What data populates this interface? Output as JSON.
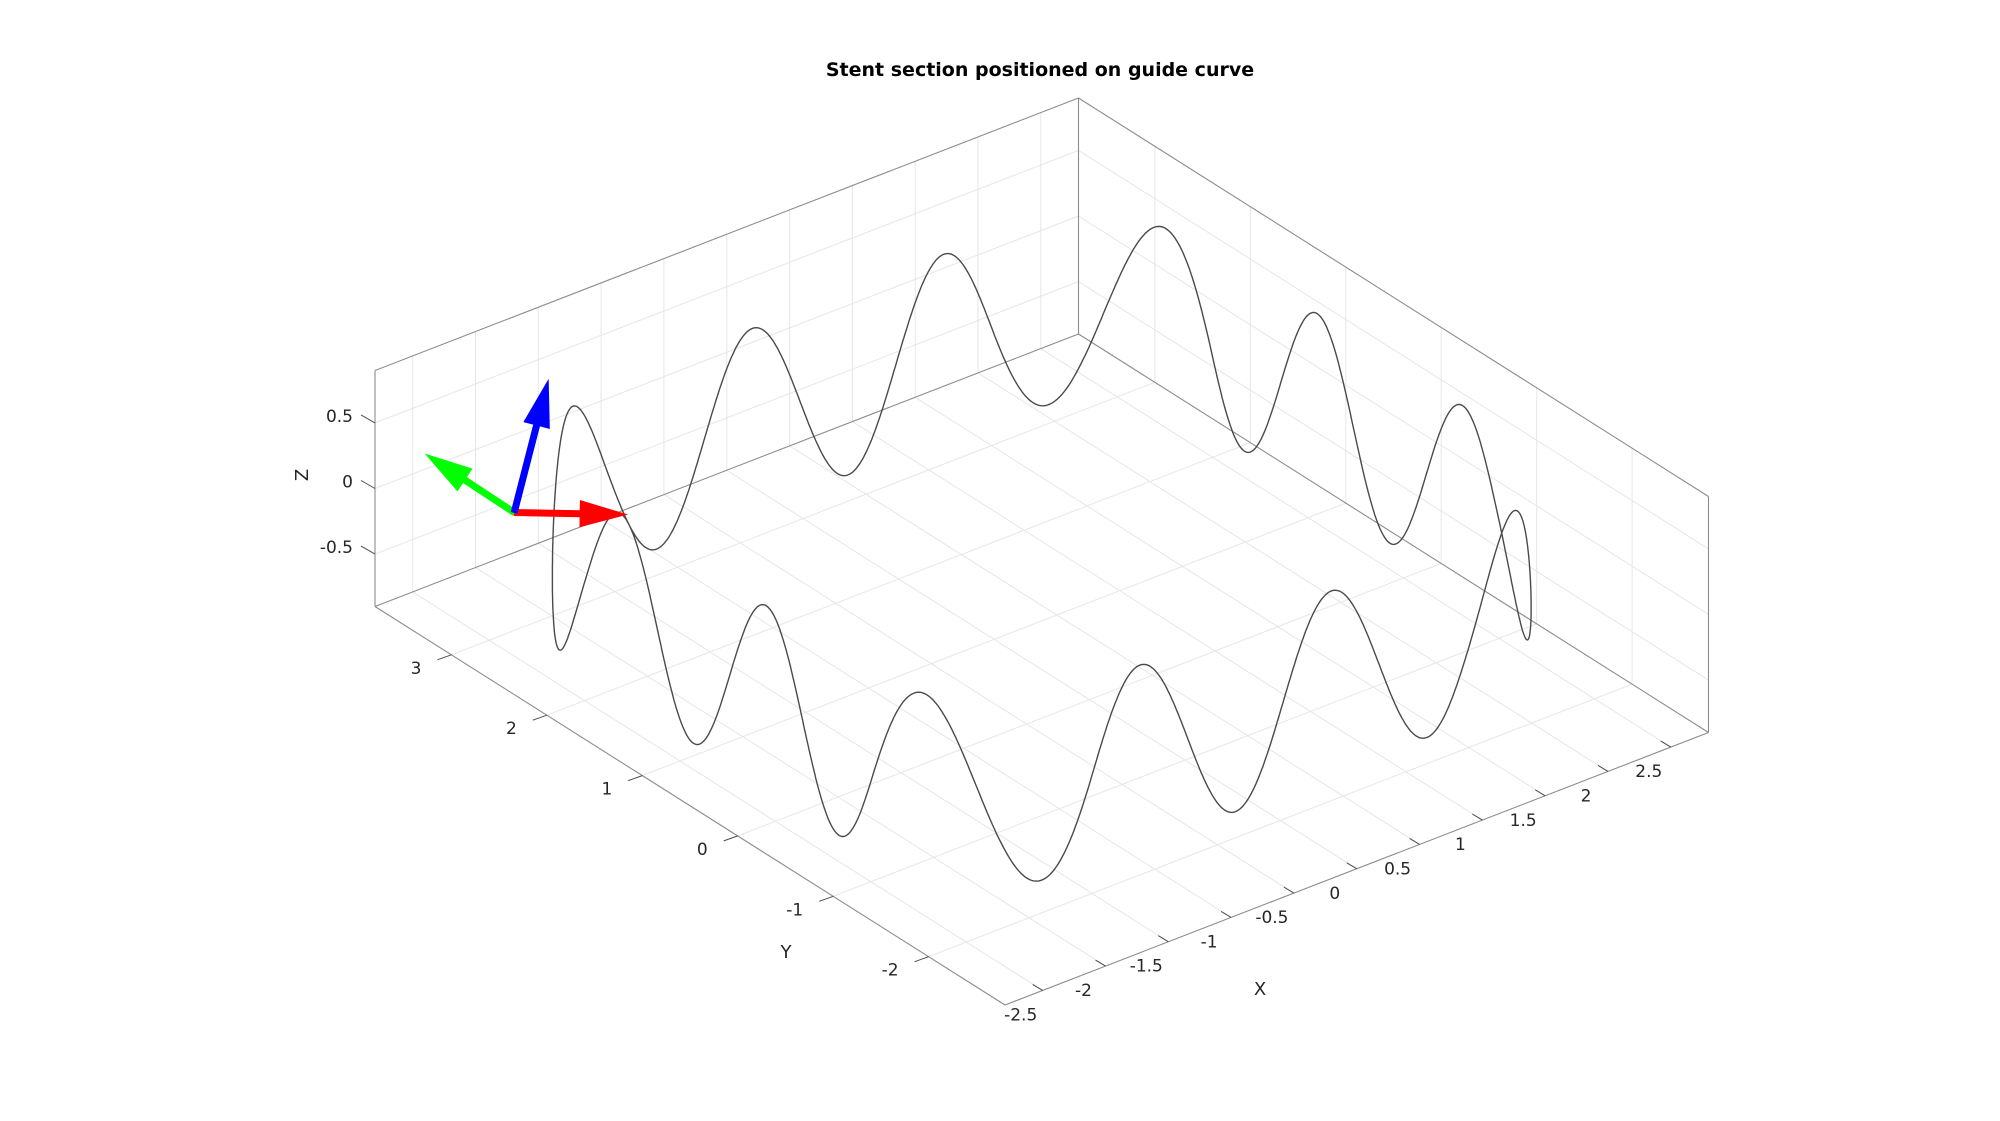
{
  "chart_data": {
    "type": "line",
    "title": "Stent section positioned on guide curve",
    "xlabel": "X",
    "ylabel": "Y",
    "zlabel": "Z",
    "xlim": [
      -2.8,
      2.8
    ],
    "ylim": [
      -2.8,
      3.8
    ],
    "zlim": [
      -0.9,
      0.9
    ],
    "xticks": [
      -2.5,
      -2,
      -1.5,
      -1,
      -0.5,
      0,
      0.5,
      1,
      1.5,
      2,
      2.5
    ],
    "xticklabels": [
      "-2.5",
      "-2",
      "-1.5",
      "-1",
      "-0.5",
      "0",
      "0.5",
      "1",
      "1.5",
      "2",
      "2.5"
    ],
    "yticks": [
      -2,
      -1,
      0,
      1,
      2,
      3
    ],
    "yticklabels": [
      "-2",
      "-1",
      "0",
      "1",
      "2",
      "3"
    ],
    "zticks": [
      -0.5,
      0,
      0.5
    ],
    "zticklabels": [
      "-0.5",
      "0",
      "0.5"
    ],
    "grid": true,
    "series": [
      {
        "type": "line3d",
        "color": "#4a4a4a",
        "guide_curve": {
          "shape": "rounded-rectangle",
          "x_half_extent": 2.5,
          "y_half_extent": 2.5,
          "y_center": 0.5,
          "corner_radius": 1.0
        },
        "wave": {
          "amplitude_z": 0.7,
          "cycles": 12
        }
      }
    ],
    "frame_triad": {
      "origin": [
        -2.3,
        3.0,
        0.0
      ],
      "axes": [
        {
          "name": "x",
          "color": "#ff0000",
          "direction": [
            1.0,
            0.0,
            0.0
          ]
        },
        {
          "name": "y",
          "color": "#00ff00",
          "direction": [
            0.0,
            1.0,
            0.0
          ]
        },
        {
          "name": "z",
          "color": "#0000ff",
          "direction": [
            0.0,
            0.0,
            1.0
          ]
        }
      ]
    }
  }
}
